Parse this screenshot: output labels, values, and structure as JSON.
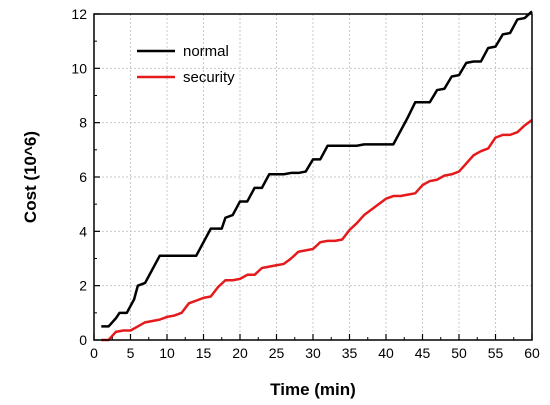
{
  "chart_data": {
    "type": "line",
    "xlabel": "Time (min)",
    "ylabel": "Cost (10^6)",
    "xlim": [
      0,
      60
    ],
    "ylim": [
      0,
      12
    ],
    "xticks": [
      "0",
      "5",
      "10",
      "15",
      "20",
      "25",
      "30",
      "35",
      "40",
      "45",
      "50",
      "55",
      "60"
    ],
    "yticks": [
      "0",
      "2",
      "4",
      "6",
      "8",
      "10",
      "12"
    ],
    "grid": true,
    "legend_position": "upper-left",
    "series": [
      {
        "name": "normal",
        "color": "#000000",
        "x": [
          1,
          2,
          3,
          3.5,
          4.5,
          5.5,
          6,
          7,
          8,
          9,
          14,
          15,
          16,
          17,
          17.5,
          18,
          19,
          20,
          21,
          22,
          23,
          24,
          25,
          26,
          27,
          28,
          29,
          30,
          31,
          32,
          33,
          34,
          35,
          36,
          37,
          38,
          39,
          40,
          41,
          42,
          43,
          44,
          45,
          46,
          47,
          48,
          49,
          50,
          51,
          52,
          53,
          54,
          55,
          56,
          57,
          58,
          59,
          60
        ],
        "y": [
          0.5,
          0.5,
          0.8,
          1.0,
          1.0,
          1.5,
          2.0,
          2.1,
          2.6,
          3.1,
          3.1,
          3.6,
          4.1,
          4.1,
          4.1,
          4.5,
          4.6,
          5.1,
          5.1,
          5.6,
          5.6,
          6.1,
          6.1,
          6.1,
          6.15,
          6.15,
          6.2,
          6.65,
          6.65,
          7.15,
          7.15,
          7.15,
          7.15,
          7.15,
          7.2,
          7.2,
          7.2,
          7.2,
          7.2,
          7.7,
          8.2,
          8.75,
          8.75,
          8.75,
          9.2,
          9.25,
          9.7,
          9.75,
          10.2,
          10.25,
          10.25,
          10.75,
          10.8,
          11.25,
          11.3,
          11.8,
          11.85,
          12.1
        ]
      },
      {
        "name": "security",
        "color": "#e41a1c",
        "x": [
          1,
          2,
          3,
          4,
          5,
          6,
          7,
          8,
          9,
          10,
          11,
          12,
          13,
          14,
          15,
          16,
          17,
          18,
          19,
          20,
          21,
          22,
          23,
          24,
          25,
          26,
          27,
          28,
          29,
          30,
          31,
          32,
          33,
          34,
          35,
          36,
          37,
          38,
          39,
          40,
          41,
          42,
          43,
          44,
          45,
          46,
          47,
          48,
          49,
          50,
          51,
          52,
          53,
          54,
          55,
          56,
          57,
          58,
          59,
          60
        ],
        "y": [
          0,
          0,
          0.3,
          0.35,
          0.35,
          0.5,
          0.65,
          0.7,
          0.75,
          0.85,
          0.9,
          1.0,
          1.35,
          1.45,
          1.55,
          1.6,
          1.95,
          2.2,
          2.2,
          2.25,
          2.4,
          2.4,
          2.65,
          2.7,
          2.75,
          2.8,
          3.0,
          3.25,
          3.3,
          3.35,
          3.6,
          3.65,
          3.65,
          3.7,
          4.05,
          4.3,
          4.6,
          4.8,
          5.0,
          5.2,
          5.3,
          5.3,
          5.35,
          5.4,
          5.7,
          5.85,
          5.9,
          6.05,
          6.1,
          6.2,
          6.5,
          6.8,
          6.95,
          7.05,
          7.45,
          7.55,
          7.55,
          7.65,
          7.9,
          8.1
        ]
      }
    ]
  }
}
